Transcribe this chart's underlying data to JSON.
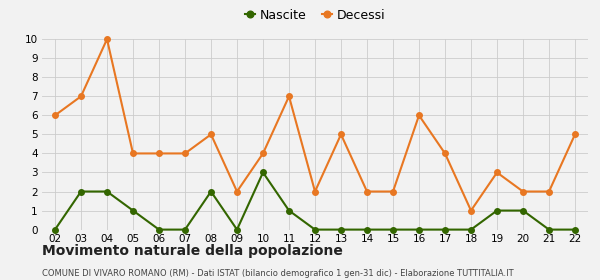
{
  "years": [
    "02",
    "03",
    "04",
    "05",
    "06",
    "07",
    "08",
    "09",
    "10",
    "11",
    "12",
    "13",
    "14",
    "15",
    "16",
    "17",
    "18",
    "19",
    "20",
    "21",
    "22"
  ],
  "nascite": [
    0,
    2,
    2,
    1,
    0,
    0,
    2,
    0,
    3,
    1,
    0,
    0,
    0,
    0,
    0,
    0,
    0,
    1,
    1,
    0,
    0
  ],
  "decessi": [
    6,
    7,
    10,
    4,
    4,
    4,
    5,
    2,
    4,
    7,
    2,
    5,
    2,
    2,
    6,
    4,
    1,
    3,
    2,
    2,
    5
  ],
  "nascite_color": "#336600",
  "decessi_color": "#E87722",
  "bg_color": "#f2f2f2",
  "grid_color": "#cccccc",
  "title": "Movimento naturale della popolazione",
  "subtitle": "COMUNE DI VIVARO ROMANO (RM) - Dati ISTAT (bilancio demografico 1 gen-31 dic) - Elaborazione TUTTITALIA.IT",
  "legend_nascite": "Nascite",
  "legend_decessi": "Decessi",
  "ylim": [
    0,
    10
  ],
  "yticks": [
    0,
    1,
    2,
    3,
    4,
    5,
    6,
    7,
    8,
    9,
    10
  ],
  "marker_size": 4,
  "line_width": 1.5,
  "title_fontsize": 10,
  "subtitle_fontsize": 6,
  "legend_fontsize": 9,
  "tick_fontsize": 7.5
}
